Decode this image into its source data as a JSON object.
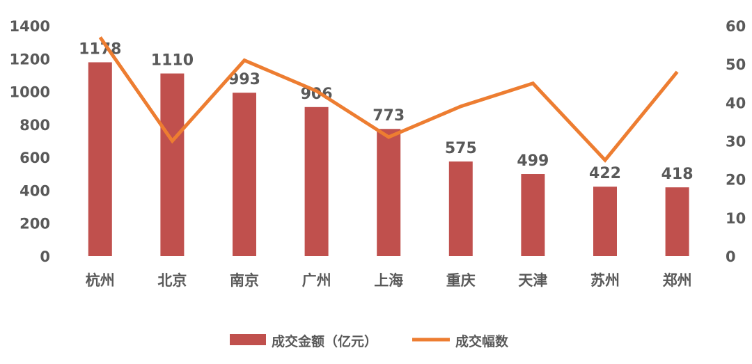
{
  "chart_data": {
    "type": "bar+line",
    "categories": [
      "杭州",
      "北京",
      "南京",
      "广州",
      "上海",
      "重庆",
      "天津",
      "苏州",
      "郑州"
    ],
    "series": [
      {
        "name": "成交金额（亿元）",
        "type": "bar",
        "axis": "left",
        "color": "#C0504D",
        "values": [
          1178,
          1110,
          993,
          906,
          773,
          575,
          499,
          422,
          418
        ]
      },
      {
        "name": "成交幅数",
        "type": "line",
        "axis": "right",
        "color": "#ED7D31",
        "values": [
          57,
          30,
          51,
          43,
          31,
          39,
          45,
          25,
          48
        ]
      }
    ],
    "left_axis": {
      "ylim": [
        0,
        1400
      ],
      "ticks": [
        0,
        200,
        400,
        600,
        800,
        1000,
        1200,
        1400
      ]
    },
    "right_axis": {
      "ylim": [
        0,
        60
      ],
      "ticks": [
        0,
        10,
        20,
        30,
        40,
        50,
        60
      ]
    },
    "grid": false,
    "legend_placement": "bottom",
    "data_labels": true
  }
}
